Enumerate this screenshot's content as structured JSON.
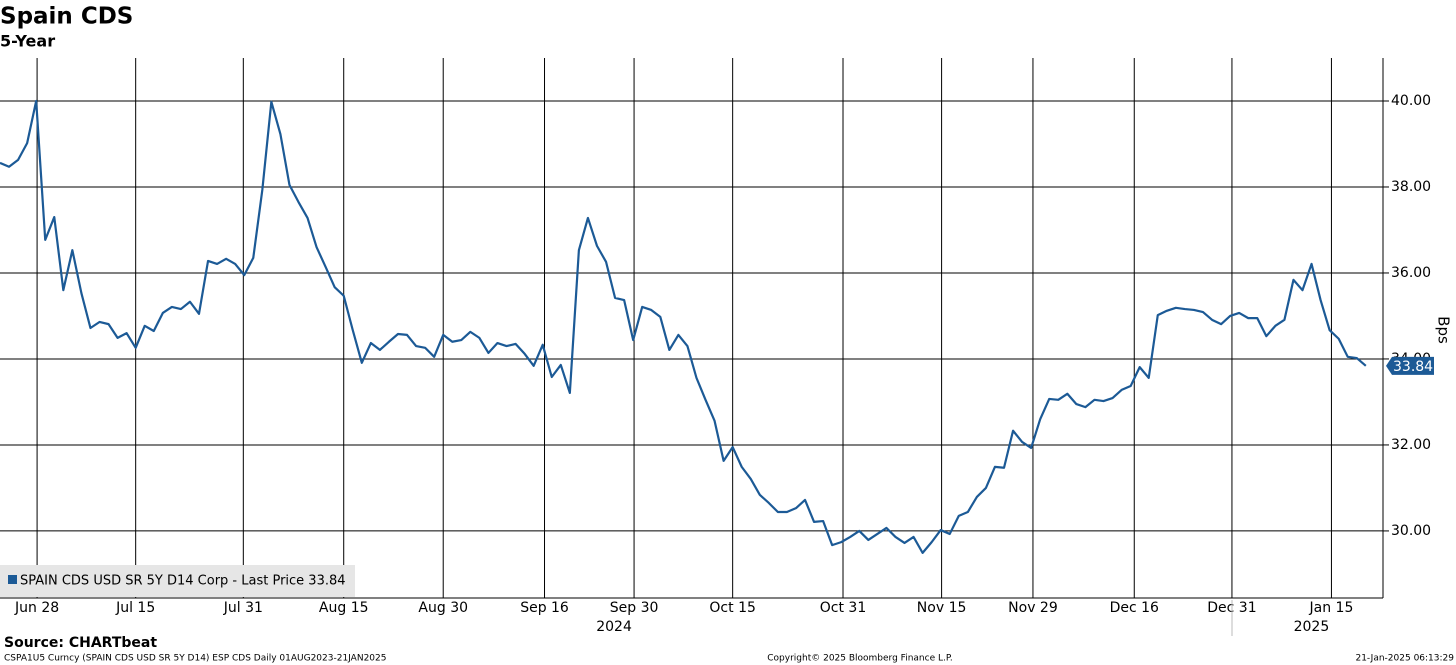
{
  "chart_data": {
    "type": "line",
    "title": "Spain CDS",
    "subtitle": "5-Year",
    "y_axis_label": "Bps",
    "source": "Source: CHARTbeat",
    "footer_left": "CSPA1U5 Curncy (SPAIN CDS USD SR 5Y D14) ESP CDS  Daily 01AUG2023-21JAN2025",
    "footer_center": "Copyright© 2025 Bloomberg Finance L.P.",
    "footer_right": "21-Jan-2025 06:13:29",
    "year_labels": [
      "2024",
      "2025"
    ],
    "grid": true,
    "xlim": [
      0,
      152.9
    ],
    "xticks": [
      {
        "value": 4.1,
        "label": "Jun 28"
      },
      {
        "value": 15,
        "label": "Jul 15"
      },
      {
        "value": 26.9,
        "label": "Jul 31"
      },
      {
        "value": 38,
        "label": "Aug 15"
      },
      {
        "value": 49,
        "label": "Aug 30"
      },
      {
        "value": 60.2,
        "label": "Sep 16"
      },
      {
        "value": 70.1,
        "label": "Sep 30"
      },
      {
        "value": 81,
        "label": "Oct 15"
      },
      {
        "value": 93.2,
        "label": "Oct 31"
      },
      {
        "value": 104.1,
        "label": "Nov 15"
      },
      {
        "value": 114.2,
        "label": "Nov 29"
      },
      {
        "value": 125.4,
        "label": "Dec 16"
      },
      {
        "value": 136.2,
        "label": "Dec 31"
      },
      {
        "value": 147.2,
        "label": "Jan 15"
      }
    ],
    "ylim": [
      28.44,
      41.0
    ],
    "yticks": [
      {
        "value": 30,
        "label": "30.00"
      },
      {
        "value": 32,
        "label": "32.00"
      },
      {
        "value": 34,
        "label": "34.00"
      },
      {
        "value": 36,
        "label": "36.00"
      },
      {
        "value": 38,
        "label": "38.00"
      },
      {
        "value": 40,
        "label": "40.00"
      }
    ],
    "series": [
      {
        "name": "SPAIN CDS USD SR 5Y D14 Corp - Last Price 33.84",
        "color": "#1c5a96",
        "values": [
          38.56,
          38.47,
          38.63,
          39.02,
          40.0,
          36.77,
          37.3,
          35.6,
          36.53,
          35.53,
          34.72,
          34.86,
          34.81,
          34.49,
          34.6,
          34.26,
          34.77,
          34.65,
          35.07,
          35.21,
          35.16,
          35.33,
          35.05,
          36.28,
          36.21,
          36.33,
          36.21,
          35.95,
          36.35,
          37.93,
          39.98,
          39.23,
          38.05,
          37.65,
          37.28,
          36.6,
          36.14,
          35.67,
          35.47,
          34.67,
          33.91,
          34.37,
          34.21,
          34.4,
          34.58,
          34.56,
          34.3,
          34.26,
          34.05,
          34.56,
          34.4,
          34.44,
          34.63,
          34.49,
          34.14,
          34.37,
          34.3,
          34.35,
          34.12,
          33.84,
          34.33,
          33.58,
          33.86,
          33.21,
          36.53,
          37.28,
          36.63,
          36.26,
          35.42,
          35.37,
          34.44,
          35.21,
          35.14,
          34.98,
          34.21,
          34.56,
          34.3,
          33.56,
          33.05,
          32.56,
          31.63,
          31.95,
          31.49,
          31.21,
          30.84,
          30.65,
          30.44,
          30.44,
          30.53,
          30.72,
          30.21,
          30.23,
          29.67,
          29.74,
          29.86,
          30.0,
          29.79,
          29.93,
          30.07,
          29.86,
          29.72,
          29.86,
          29.49,
          29.74,
          30.02,
          29.93,
          30.35,
          30.44,
          30.79,
          31.0,
          31.49,
          31.47,
          32.33,
          32.07,
          31.93,
          32.6,
          33.07,
          33.05,
          33.19,
          32.95,
          32.88,
          33.05,
          33.02,
          33.09,
          33.28,
          33.37,
          33.81,
          33.56,
          35.02,
          35.12,
          35.19,
          35.16,
          35.14,
          35.09,
          34.91,
          34.81,
          35.0,
          35.07,
          34.95,
          34.95,
          34.53,
          34.77,
          34.91,
          35.84,
          35.6,
          36.21,
          35.37,
          34.67,
          34.47,
          34.05,
          34.02,
          33.84
        ]
      }
    ]
  }
}
